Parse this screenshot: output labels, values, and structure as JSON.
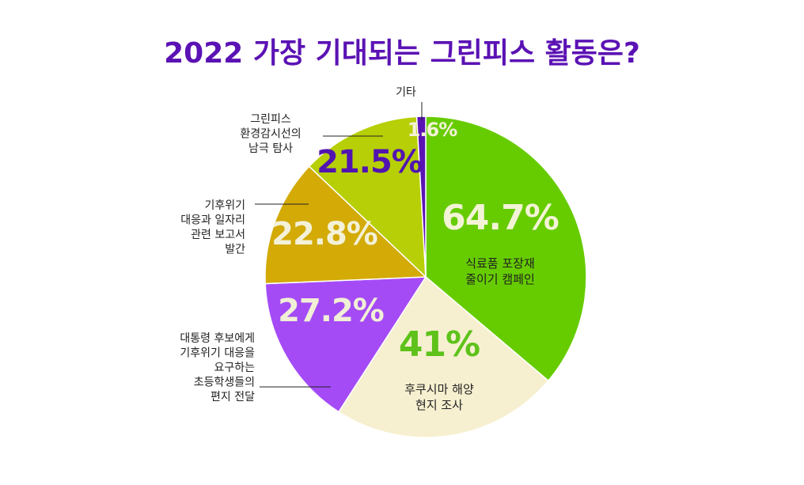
{
  "title": "2022 가장 기대되는 그린피스 활동은?",
  "colors": {
    "title": "#5b12b4",
    "leader": "#222222"
  },
  "chart_data": {
    "type": "pie",
    "title": "2022 가장 기대되는 그린피스 활동은?",
    "slices": [
      {
        "label": "식료품 포장재\n줄이기 캠페인",
        "value_label": "64.7%",
        "value": 64.7,
        "color": "#66cc00",
        "value_color": "#f3f3d6"
      },
      {
        "label": "후쿠시마 해양\n현지 조사",
        "value_label": "41%",
        "value": 41,
        "color": "#f6f0d0",
        "value_color": "#5ec21a"
      },
      {
        "label": "대통령 후보에게\n기후위기 대응을\n요구하는\n초등학생들의\n편지 전달",
        "value_label": "27.2%",
        "value": 27.2,
        "color": "#a44bf6",
        "value_color": "#f1efd6"
      },
      {
        "label": "기후위기\n대응과 일자리\n관련 보고서\n발간",
        "value_label": "22.8%",
        "value": 22.8,
        "color": "#d3aa06",
        "value_color": "#f3f1d8"
      },
      {
        "label": "그린피스\n환경감시선의\n남극 탐사",
        "value_label": "21.5%",
        "value": 21.5,
        "color": "#b7cf06",
        "value_color": "#5214b0"
      },
      {
        "label": "기타",
        "value_label": "1.6%",
        "value": 1.6,
        "color": "#5b12b4",
        "value_color": "#f3f1d6"
      }
    ]
  }
}
